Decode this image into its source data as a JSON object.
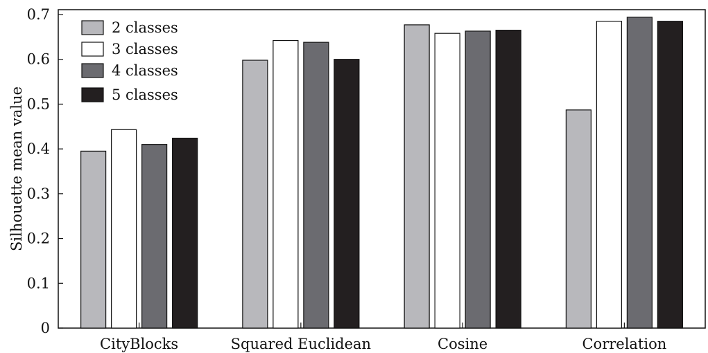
{
  "chart_data": {
    "type": "bar",
    "categories": [
      "CityBlocks",
      "Squared Euclidean",
      "Cosine",
      "Correlation"
    ],
    "series": [
      {
        "name": "2 classes",
        "color": "#b8b8bc",
        "values": [
          0.395,
          0.598,
          0.677,
          0.487
        ]
      },
      {
        "name": "3 classes",
        "color": "#ffffff",
        "values": [
          0.443,
          0.642,
          0.658,
          0.685
        ]
      },
      {
        "name": "4 classes",
        "color": "#6b6b70",
        "values": [
          0.41,
          0.638,
          0.663,
          0.694
        ]
      },
      {
        "name": "5 classes",
        "color": "#231f20",
        "values": [
          0.424,
          0.6,
          0.665,
          0.685
        ]
      }
    ],
    "title": "",
    "xlabel": "",
    "ylabel": "Silhouette mean value",
    "ylim": [
      0,
      0.7
    ],
    "yticks": [
      "0",
      "0.1",
      "0.2",
      "0.3",
      "0.4",
      "0.5",
      "0.6",
      "0.7"
    ],
    "grid": false,
    "legend_position": "top-left"
  }
}
